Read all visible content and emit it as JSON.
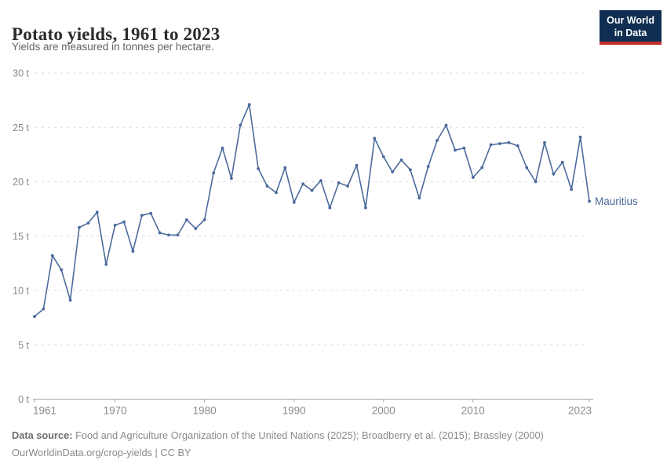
{
  "header": {
    "title": "Potato yields, 1961 to 2023",
    "subtitle": "Yields are measured in tonnes per hectare."
  },
  "logo": {
    "line1": "Our World",
    "line2": "in Data",
    "bg_color": "#0f2e52",
    "accent_color": "#c2302b"
  },
  "chart_data": {
    "type": "line",
    "title": "Potato yields, 1961 to 2023",
    "subtitle": "Yields are measured in tonnes per hectare.",
    "unit": "t",
    "xlim": [
      1961,
      2023
    ],
    "ylim": [
      0,
      30
    ],
    "xticks": [
      1961,
      1970,
      1980,
      1990,
      2000,
      2010,
      2023
    ],
    "yticks": [
      0,
      5,
      10,
      15,
      20,
      25,
      30
    ],
    "ytick_suffix": " t",
    "grid": "horizontal-dashed",
    "legend_position": "end-of-line-label",
    "series": [
      {
        "name": "Mauritius",
        "color": "#4c6a9c",
        "x": [
          1961,
          1962,
          1963,
          1964,
          1965,
          1966,
          1967,
          1968,
          1969,
          1970,
          1971,
          1972,
          1973,
          1974,
          1975,
          1976,
          1977,
          1978,
          1979,
          1980,
          1981,
          1982,
          1983,
          1984,
          1985,
          1986,
          1987,
          1988,
          1989,
          1990,
          1991,
          1992,
          1993,
          1994,
          1995,
          1996,
          1997,
          1998,
          1999,
          2000,
          2001,
          2002,
          2003,
          2004,
          2005,
          2006,
          2007,
          2008,
          2009,
          2010,
          2011,
          2012,
          2013,
          2014,
          2015,
          2016,
          2017,
          2018,
          2019,
          2020,
          2021,
          2022,
          2023
        ],
        "values": [
          7.6,
          8.3,
          13.2,
          11.9,
          9.1,
          15.8,
          16.2,
          17.2,
          12.4,
          16.0,
          16.3,
          13.6,
          16.9,
          17.1,
          15.3,
          15.1,
          15.1,
          16.5,
          15.7,
          16.5,
          20.8,
          23.1,
          20.3,
          25.2,
          27.1,
          21.2,
          19.6,
          19.0,
          21.3,
          18.1,
          19.8,
          19.2,
          20.1,
          17.6,
          19.9,
          19.6,
          21.5,
          17.6,
          24.0,
          22.3,
          20.9,
          22.0,
          21.1,
          18.5,
          21.4,
          23.8,
          25.2,
          22.9,
          23.1,
          20.4,
          21.3,
          23.4,
          23.5,
          23.6,
          23.3,
          21.3,
          20.0,
          23.6,
          20.7,
          21.8,
          19.3,
          24.1,
          18.2
        ]
      }
    ]
  },
  "footer": {
    "source_label": "Data source:",
    "source_text": " Food and Agriculture Organization of the United Nations (2025); Broadberry et al. (2015); Brassley (2000)",
    "license_line": "OurWorldinData.org/crop-yields | CC BY"
  }
}
